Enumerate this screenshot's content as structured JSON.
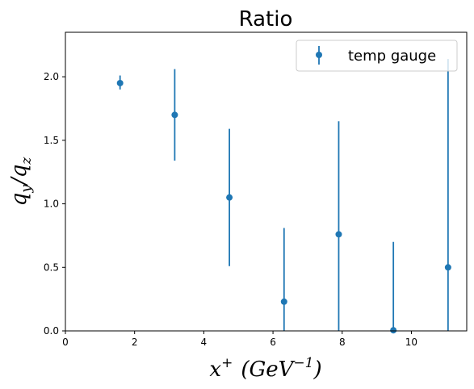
{
  "chart_data": {
    "type": "scatter",
    "title": "Ratio",
    "xlabel": "x⁺  (GeV⁻¹)",
    "ylabel": "q_y/q_z",
    "xlim": [
      0,
      11.6
    ],
    "ylim": [
      0,
      2.35
    ],
    "xticks": [
      0,
      2,
      4,
      6,
      8,
      10
    ],
    "yticks": [
      0.0,
      0.5,
      1.0,
      1.5,
      2.0
    ],
    "xtick_labels": [
      "0",
      "2",
      "4",
      "6",
      "8",
      "10"
    ],
    "ytick_labels": [
      "0.0",
      "0.5",
      "1.0",
      "1.5",
      "2.0"
    ],
    "grid": false,
    "legend_position": "top-right",
    "series": [
      {
        "name": "temp gauge",
        "color": "#1f77b4",
        "marker": "circle",
        "points": [
          {
            "x": 1.58,
            "y": 1.95,
            "yerr_low": 1.9,
            "yerr_high": 2.01
          },
          {
            "x": 3.16,
            "y": 1.7,
            "yerr_low": 1.34,
            "yerr_high": 2.06
          },
          {
            "x": 4.74,
            "y": 1.05,
            "yerr_low": 0.51,
            "yerr_high": 1.59
          },
          {
            "x": 6.32,
            "y": 0.23,
            "yerr_low": 0.0,
            "yerr_high": 0.81
          },
          {
            "x": 7.9,
            "y": 0.76,
            "yerr_low": 0.0,
            "yerr_high": 1.65
          },
          {
            "x": 9.48,
            "y": 0.005,
            "yerr_low": 0.0,
            "yerr_high": 0.7
          },
          {
            "x": 11.06,
            "y": 0.5,
            "yerr_low": 0.0,
            "yerr_high": 2.14
          }
        ]
      }
    ]
  }
}
